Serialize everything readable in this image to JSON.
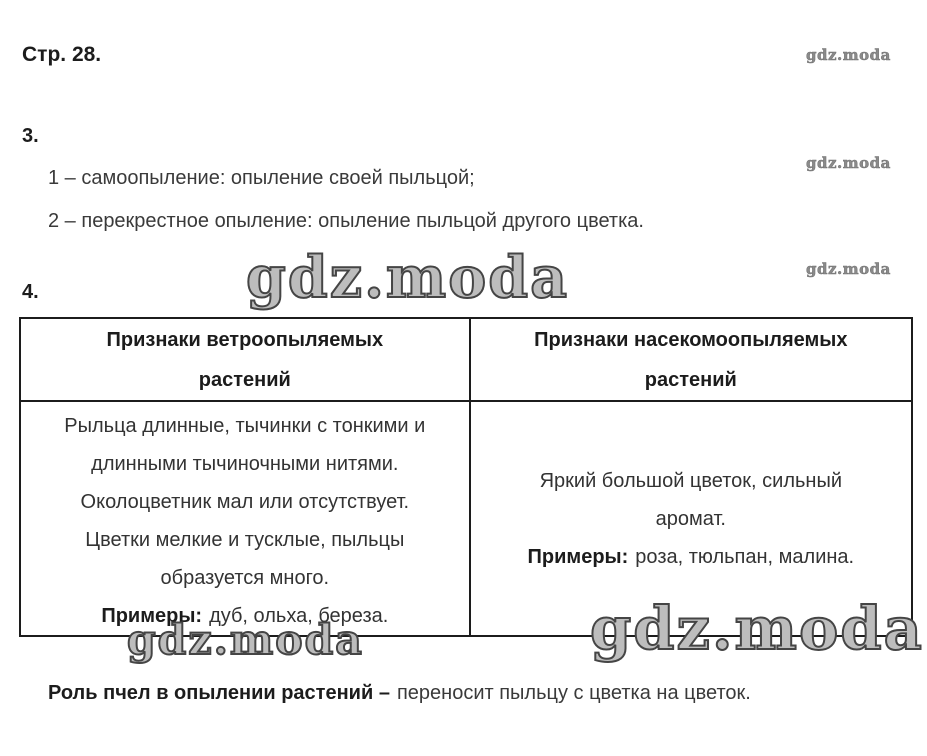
{
  "watermark": {
    "text": "gdz.moda"
  },
  "page": {
    "label": "Стр. 28."
  },
  "task3": {
    "number": "3.",
    "items": [
      "1 – самоопыление: опыление своей пыльцой;",
      "2 – перекрестное опыление: опыление пыльцой другого цветка."
    ]
  },
  "task4": {
    "number": "4.",
    "table": {
      "headers": [
        {
          "line1": "Признаки ветроопыляемых",
          "line2": "растений"
        },
        {
          "line1": "Признаки насекомоопыляемых",
          "line2": "растений"
        }
      ],
      "wind": {
        "lines": [
          "Рыльца длинные, тычинки с тонкими и",
          "длинными тычиночными нитями.",
          "Околоцветник мал или отсутствует.",
          "Цветки мелкие и тусклые, пыльцы",
          "образуется много."
        ],
        "examples_label": "Примеры:",
        "examples_text": "дуб, ольха, береза."
      },
      "insect": {
        "lines": [
          "Яркий большой цветок, сильный",
          "аромат."
        ],
        "examples_label": "Примеры:",
        "examples_text": "роза, тюльпан, малина."
      }
    }
  },
  "conclusion": {
    "lead_bold": "Роль пчел в опылении растений –",
    "text": "переносит пыльцу с цветка на цветок."
  }
}
